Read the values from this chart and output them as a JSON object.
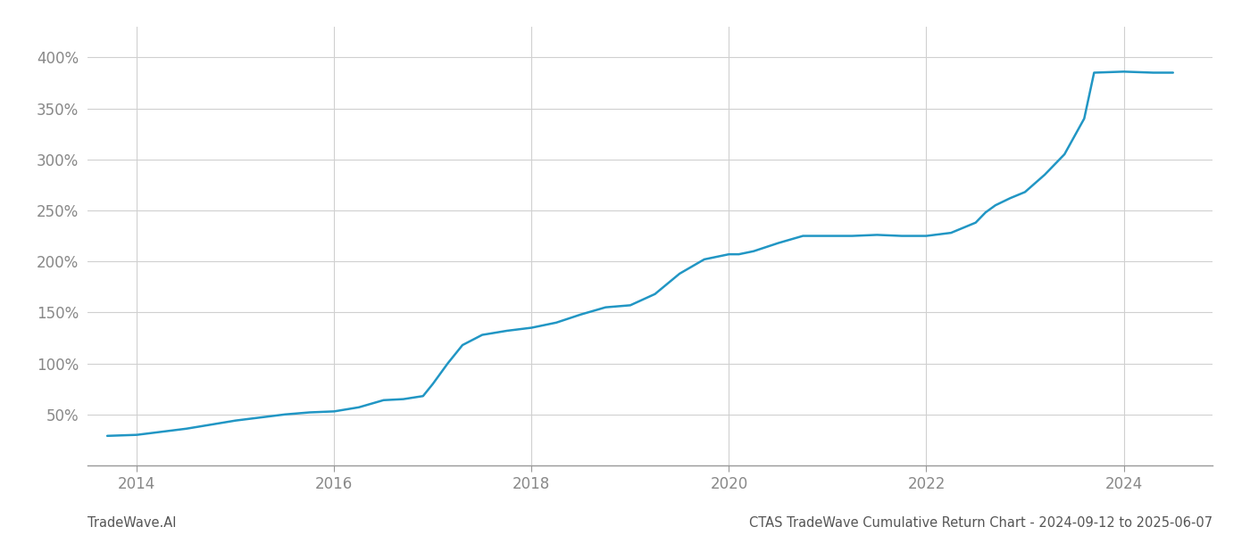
{
  "title": "CTAS TradeWave Cumulative Return Chart - 2024-09-12 to 2025-06-07",
  "watermark": "TradeWave.AI",
  "line_color": "#2196c4",
  "line_width": 1.8,
  "background_color": "#ffffff",
  "grid_color": "#d0d0d0",
  "x_values": [
    2013.7,
    2014.0,
    2014.25,
    2014.5,
    2014.75,
    2015.0,
    2015.25,
    2015.5,
    2015.75,
    2016.0,
    2016.25,
    2016.5,
    2016.7,
    2016.9,
    2017.0,
    2017.15,
    2017.3,
    2017.5,
    2017.75,
    2018.0,
    2018.25,
    2018.5,
    2018.75,
    2019.0,
    2019.25,
    2019.5,
    2019.75,
    2020.0,
    2020.1,
    2020.25,
    2020.5,
    2020.75,
    2021.0,
    2021.25,
    2021.5,
    2021.75,
    2022.0,
    2022.25,
    2022.5,
    2022.6,
    2022.7,
    2022.85,
    2023.0,
    2023.2,
    2023.4,
    2023.6,
    2023.7,
    2024.0,
    2024.3,
    2024.5
  ],
  "y_values": [
    29,
    30,
    33,
    36,
    40,
    44,
    47,
    50,
    52,
    53,
    57,
    64,
    65,
    68,
    80,
    100,
    118,
    128,
    132,
    135,
    140,
    148,
    155,
    157,
    168,
    188,
    202,
    207,
    207,
    210,
    218,
    225,
    225,
    225,
    226,
    225,
    225,
    228,
    238,
    248,
    255,
    262,
    268,
    285,
    305,
    340,
    385,
    386,
    385,
    385
  ],
  "xlim": [
    2013.5,
    2024.9
  ],
  "ylim": [
    0,
    430
  ],
  "yticks": [
    0,
    50,
    100,
    150,
    200,
    250,
    300,
    350,
    400
  ],
  "ytick_labels": [
    "",
    "50%",
    "100%",
    "150%",
    "200%",
    "250%",
    "300%",
    "350%",
    "400%"
  ],
  "xticks": [
    2014,
    2016,
    2018,
    2020,
    2022,
    2024
  ],
  "xtick_labels": [
    "2014",
    "2016",
    "2018",
    "2020",
    "2022",
    "2024"
  ],
  "tick_fontsize": 12,
  "title_fontsize": 10.5,
  "watermark_fontsize": 10.5
}
